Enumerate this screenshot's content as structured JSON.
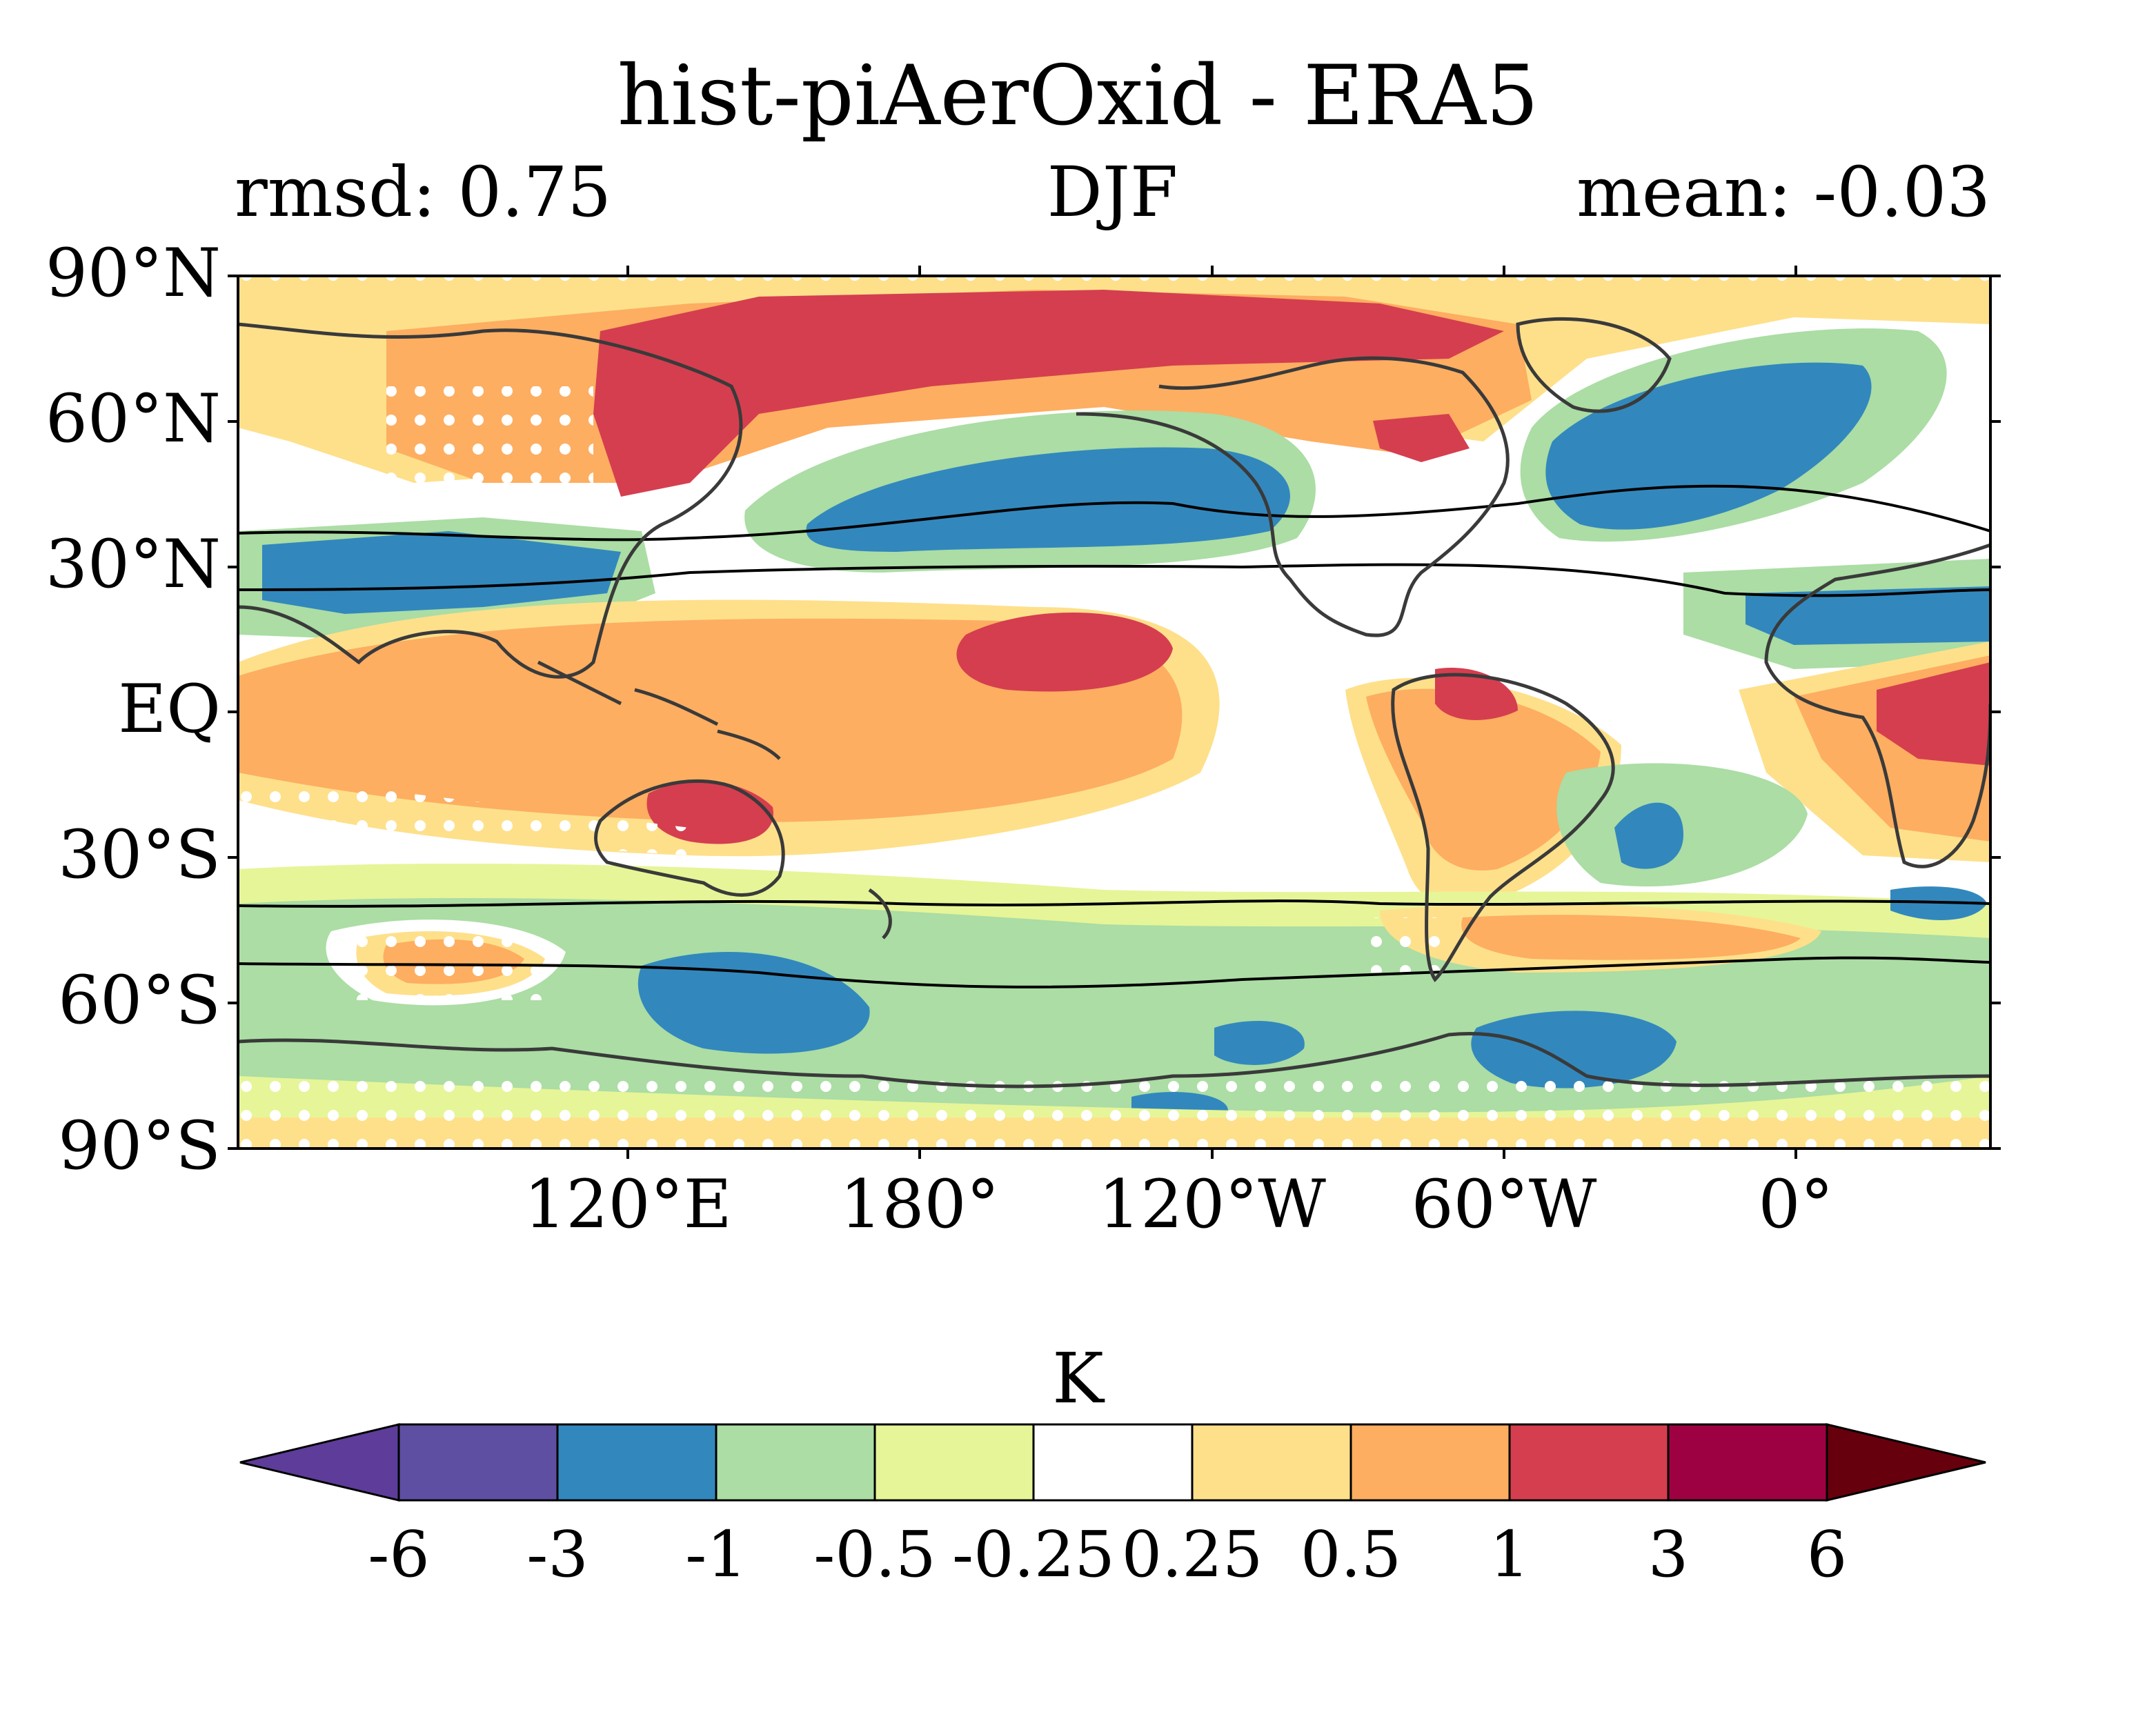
{
  "figure": {
    "title": "hist-piAerOxid - ERA5",
    "subtitle_left": "rmsd: 0.75",
    "subtitle_center": "DJF",
    "subtitle_right": "mean: -0.03"
  },
  "map": {
    "lat_labels": [
      "90°N",
      "60°N",
      "30°N",
      "EQ",
      "30°S",
      "60°S",
      "90°S"
    ],
    "lon_labels": [
      "120°E",
      "180°",
      "120°W",
      "60°W",
      "0°"
    ],
    "projection": "PlateCarree",
    "lon_range": [
      40,
      400
    ],
    "lat_range": [
      -90,
      90
    ]
  },
  "colorbar": {
    "unit": "K",
    "ticks": [
      "-6",
      "-3",
      "-1",
      "-0.5",
      "-0.25",
      "0.25",
      "0.5",
      "1",
      "3",
      "6"
    ],
    "colors": [
      "#5e4fa2",
      "#3288bd",
      "#abdda4",
      "#e6f598",
      "#ffffff",
      "#fee08b",
      "#fdae61",
      "#d53e4f",
      "#9e0142"
    ],
    "extend_low_color": "#5e3c99",
    "extend_high_color": "#67000d"
  },
  "colors": {
    "strong_negative": "#3288bd",
    "moderate_negative": "#abdda4",
    "weak_negative": "#e6f598",
    "weak_positive": "#fee08b",
    "moderate_positive": "#fdae61",
    "strong_positive": "#d53e4f",
    "coast": "#3a3a3a"
  }
}
